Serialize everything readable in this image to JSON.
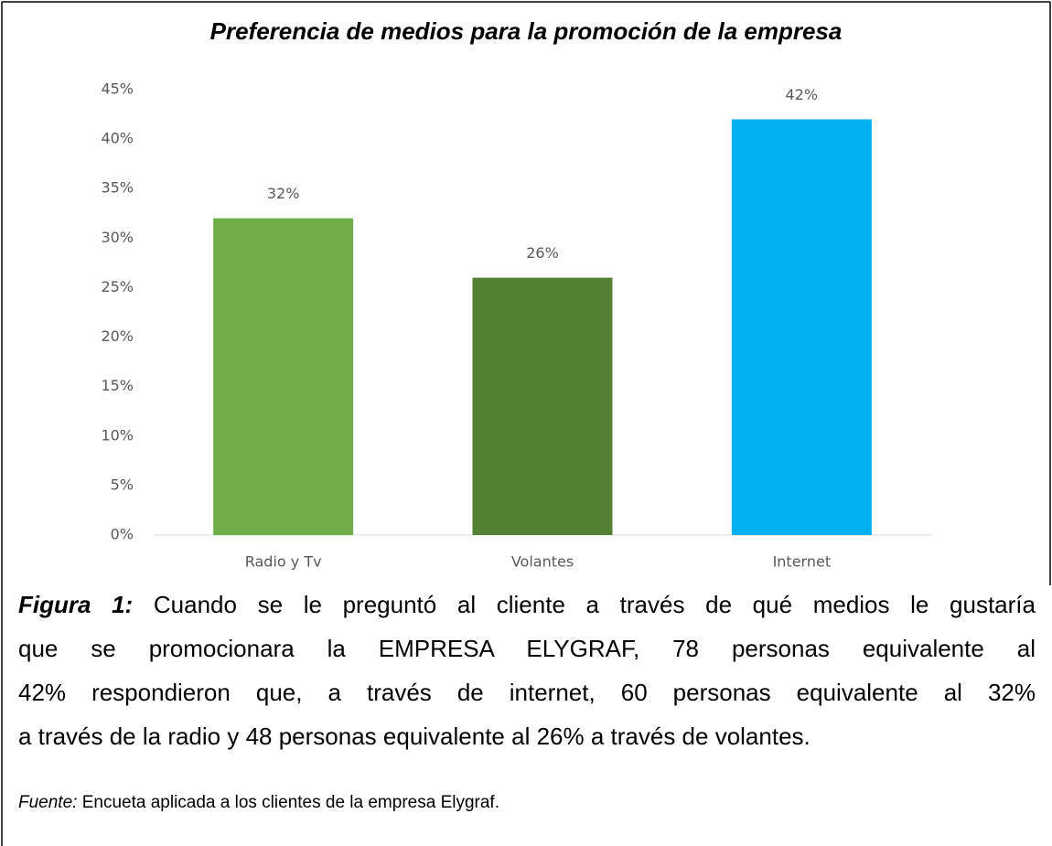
{
  "chart_data": {
    "type": "bar",
    "title": "Preferencia de medios para la promoción de la empresa",
    "categories": [
      "Radio y Tv",
      "Volantes",
      "Internet"
    ],
    "values": [
      32,
      26,
      42
    ],
    "value_labels": [
      "32%",
      "26%",
      "42%"
    ],
    "colors": [
      "#70ad47",
      "#548235",
      "#00b0f0"
    ],
    "ylim": [
      0,
      45
    ],
    "yticks": [
      {
        "value": 0,
        "label": "0%"
      },
      {
        "value": 5,
        "label": "5%"
      },
      {
        "value": 10,
        "label": "10%"
      },
      {
        "value": 15,
        "label": "15%"
      },
      {
        "value": 20,
        "label": "20%"
      },
      {
        "value": 25,
        "label": "25%"
      },
      {
        "value": 30,
        "label": "30%"
      },
      {
        "value": 35,
        "label": "35%"
      },
      {
        "value": 40,
        "label": "40%"
      },
      {
        "value": 45,
        "label": "45%"
      }
    ],
    "grid": false
  },
  "caption": {
    "label": "Figura 1:",
    "lines": [
      "Cuando se le preguntó al cliente a través de qué medios le gustaría",
      "que se promocionara la EMPRESA ELYGRAF, 78 personas equivalente al",
      "42% respondieron que, a través de internet, 60 personas equivalente al 32%",
      "a través de la radio y 48 personas equivalente al 26% a través de volantes."
    ],
    "source_label": "Fuente:",
    "source": "Encueta aplicada a los clientes de la empresa Elygraf."
  }
}
